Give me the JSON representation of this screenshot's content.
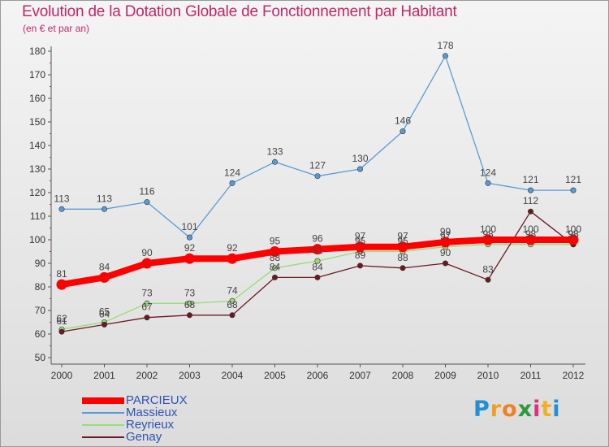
{
  "chart_data": {
    "type": "line",
    "title": "Evolution de la Dotation Globale de Fonctionnement par Habitant",
    "subtitle": "(en € et par an)",
    "x": [
      "2000",
      "2001",
      "2002",
      "2003",
      "2004",
      "2005",
      "2006",
      "2007",
      "2008",
      "2009",
      "2010",
      "2011",
      "2012"
    ],
    "ylim": [
      50,
      180
    ],
    "yticks": [
      50,
      60,
      70,
      80,
      90,
      100,
      110,
      120,
      130,
      140,
      150,
      160,
      170,
      180
    ],
    "grid": false,
    "legend_position": "bottom-left",
    "series": [
      {
        "name": "Massieux",
        "color": "#5b9bd5",
        "values": [
          113,
          113,
          116,
          101,
          124,
          133,
          127,
          130,
          146,
          178,
          124,
          121,
          121
        ]
      },
      {
        "name": "Reyrieux",
        "color": "#99dd77",
        "values": [
          62,
          65,
          73,
          73,
          74,
          88,
          91,
          95,
          95,
          97,
          98,
          98,
          98
        ]
      },
      {
        "name": "Genay",
        "color": "#6b1a22",
        "values": [
          61,
          64,
          67,
          68,
          68,
          84,
          84,
          89,
          88,
          90,
          83,
          112,
          98
        ]
      },
      {
        "name": "PARCIEUX",
        "color": "#ff0000",
        "values": [
          81,
          84,
          90,
          92,
          92,
          95,
          96,
          97,
          97,
          99,
          100,
          100,
          100
        ]
      }
    ],
    "legend_order": [
      "PARCIEUX",
      "Massieux",
      "Reyrieux",
      "Genay"
    ]
  },
  "logo": {
    "letters": [
      "P",
      "r",
      "o",
      "x",
      "i",
      "t",
      "i"
    ],
    "colors": [
      "#1f8fd6",
      "#f0a020",
      "#f08020",
      "#2a9a3a",
      "#e03080",
      "#f0b020",
      "#1f8fd6"
    ]
  }
}
